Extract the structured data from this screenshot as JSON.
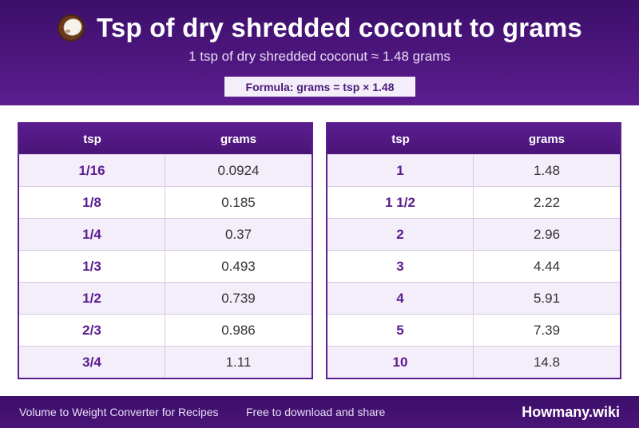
{
  "header": {
    "icon": "coconut-icon",
    "title": "Tsp of dry shredded coconut to grams",
    "subtitle": "1 tsp of dry shredded coconut ≈ 1.48 grams",
    "formula": "Formula: grams = tsp × 1.48"
  },
  "tables": [
    {
      "headers": [
        "tsp",
        "grams"
      ],
      "rows": [
        [
          "1/16",
          "0.0924"
        ],
        [
          "1/8",
          "0.185"
        ],
        [
          "1/4",
          "0.37"
        ],
        [
          "1/3",
          "0.493"
        ],
        [
          "1/2",
          "0.739"
        ],
        [
          "2/3",
          "0.986"
        ],
        [
          "3/4",
          "1.11"
        ]
      ]
    },
    {
      "headers": [
        "tsp",
        "grams"
      ],
      "rows": [
        [
          "1",
          "1.48"
        ],
        [
          "1 1/2",
          "2.22"
        ],
        [
          "2",
          "2.96"
        ],
        [
          "3",
          "4.44"
        ],
        [
          "4",
          "5.91"
        ],
        [
          "5",
          "7.39"
        ],
        [
          "10",
          "14.8"
        ]
      ]
    }
  ],
  "footer": {
    "left": "Volume to Weight Converter for Recipes",
    "middle": "Free to download and share",
    "brand": "Howmany.wiki"
  },
  "colors": {
    "primary": "#5b1d8f",
    "primary_dark": "#3c0f6a",
    "row_alt": "#f3eef9"
  }
}
